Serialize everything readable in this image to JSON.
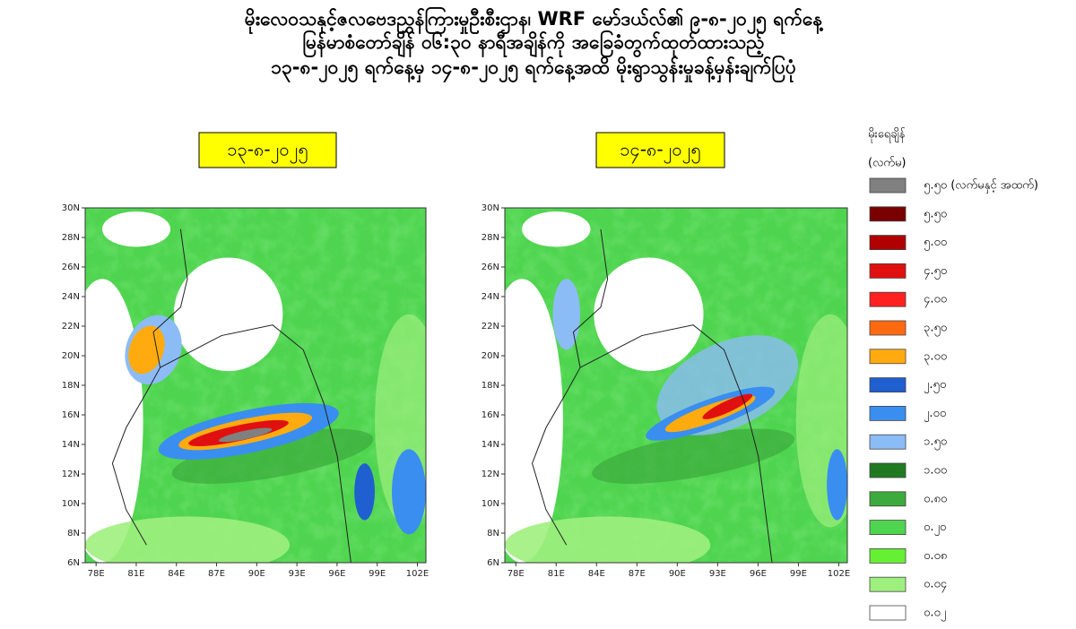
{
  "title_lines": [
    "မိုးလေဝသနှင့်ဇလဗေဒညွှန်ကြားမှုဦးစီးဌာန၊ WRF မော်ဒယ်လ်၏ ၉-၈-၂၀၂၅ ရက်နေ့",
    "မြန်မာစံတော်ချိန် ၀၆:၃၀ နာရီအချိန်ကို အခြေခံတွက်ထုတ်ထားသည့်",
    "၁၃-၈-၂၀၂၅ ရက်နေ့မှ ၁၄-၈-၂၀၂၅ ရက်နေ့အထိ မိုးရွာသွန်းမှုခန့်မှန်းချက်ပြပုံ"
  ],
  "maps": [
    {
      "date": "၁၃-၈-၂၀၂၅",
      "y_ticks": [
        "30N",
        "28N",
        "26N",
        "24N",
        "22N",
        "20N",
        "18N",
        "16N",
        "14N",
        "12N",
        "10N",
        "8N",
        "6N"
      ],
      "x_ticks": [
        "78E",
        "81E",
        "84E",
        "87E",
        "90E",
        "93E",
        "96E",
        "99E",
        "102E"
      ]
    },
    {
      "date": "၁၄-၈-၂၀၂၅",
      "y_ticks": [
        "30N",
        "28N",
        "26N",
        "24N",
        "22N",
        "20N",
        "18N",
        "16N",
        "14N",
        "12N",
        "10N",
        "8N",
        "6N"
      ],
      "x_ticks": [
        "78E",
        "81E",
        "84E",
        "87E",
        "90E",
        "93E",
        "96E",
        "99E",
        "102E"
      ]
    }
  ],
  "legend": {
    "title": "မိုးရေချိန်",
    "unit": "(လက်မ)",
    "items": [
      {
        "label": "၅.၅၀ (လက်မနှင့် အထက်)",
        "color": "#808080"
      },
      {
        "label": "၅.၅၀",
        "color": "#7a0000"
      },
      {
        "label": "၅.၀၀",
        "color": "#b00000"
      },
      {
        "label": "၄.၅၀",
        "color": "#e01010"
      },
      {
        "label": "၄.၀၀",
        "color": "#ff2020"
      },
      {
        "label": "၃.၅၀",
        "color": "#ff6a10"
      },
      {
        "label": "၃.၀၀",
        "color": "#ffab10"
      },
      {
        "label": "၂.၅၀",
        "color": "#1f5fd0"
      },
      {
        "label": "၂.၀၀",
        "color": "#3a8ef0"
      },
      {
        "label": "၁.၅၀",
        "color": "#8cbcf6"
      },
      {
        "label": "၁.၀၀",
        "color": "#217a21"
      },
      {
        "label": "၀.၈၀",
        "color": "#3caa3c"
      },
      {
        "label": "၀.၂၀",
        "color": "#4ed44e"
      },
      {
        "label": "၀.၀၈",
        "color": "#66f033"
      },
      {
        "label": "၀.၀၄",
        "color": "#9ef07e"
      },
      {
        "label": "၀.၀၂",
        "color": "#ffffff"
      }
    ]
  }
}
